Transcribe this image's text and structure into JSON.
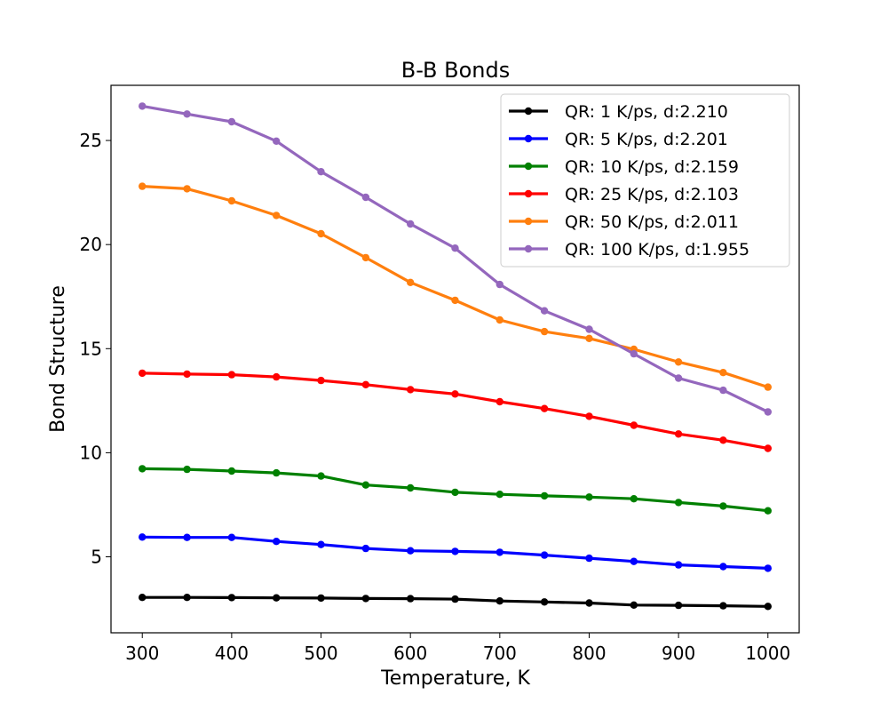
{
  "chart_data": {
    "type": "line",
    "title": "B-B Bonds",
    "xlabel": "Temperature, K",
    "ylabel": "Bond Structure",
    "xlim": [
      265,
      1035
    ],
    "ylim": [
      1.35,
      27.65
    ],
    "x_ticks": [
      300,
      400,
      500,
      600,
      700,
      800,
      900,
      1000
    ],
    "y_ticks": [
      5,
      10,
      15,
      20,
      25
    ],
    "x": [
      300,
      350,
      400,
      450,
      500,
      550,
      600,
      650,
      700,
      750,
      800,
      850,
      900,
      950,
      1000
    ],
    "grid": false,
    "legend_position": "top-right",
    "series": [
      {
        "name": "QR: 1 K/ps, d:2.210",
        "color": "#000000",
        "values": [
          3.05,
          3.05,
          3.04,
          3.03,
          3.02,
          3.0,
          2.99,
          2.97,
          2.88,
          2.83,
          2.78,
          2.68,
          2.67,
          2.65,
          2.62
        ]
      },
      {
        "name": "QR: 5 K/ps, d:2.201",
        "color": "#0000ff",
        "values": [
          5.95,
          5.93,
          5.93,
          5.74,
          5.59,
          5.4,
          5.29,
          5.26,
          5.22,
          5.08,
          4.93,
          4.78,
          4.61,
          4.53,
          4.45
        ]
      },
      {
        "name": "QR: 10 K/ps, d:2.159",
        "color": "#008000",
        "values": [
          9.23,
          9.2,
          9.12,
          9.03,
          8.88,
          8.45,
          8.31,
          8.1,
          8.0,
          7.93,
          7.87,
          7.79,
          7.61,
          7.44,
          7.21
        ]
      },
      {
        "name": "QR: 25 K/ps, d:2.103",
        "color": "#ff0000",
        "values": [
          13.82,
          13.78,
          13.75,
          13.64,
          13.47,
          13.27,
          13.03,
          12.82,
          12.45,
          12.12,
          11.75,
          11.32,
          10.9,
          10.6,
          10.21
        ]
      },
      {
        "name": "QR: 50 K/ps, d:2.011",
        "color": "#ff7f0e",
        "values": [
          22.8,
          22.68,
          22.1,
          21.4,
          20.52,
          19.37,
          18.18,
          17.32,
          16.38,
          15.82,
          15.49,
          14.97,
          14.36,
          13.85,
          13.15
        ]
      },
      {
        "name": "QR: 100 K/ps, d:1.955",
        "color": "#9467bd",
        "values": [
          26.65,
          26.27,
          25.9,
          24.97,
          23.5,
          22.27,
          20.99,
          19.83,
          18.08,
          16.82,
          15.93,
          14.75,
          13.58,
          13.0,
          11.96
        ]
      }
    ]
  }
}
